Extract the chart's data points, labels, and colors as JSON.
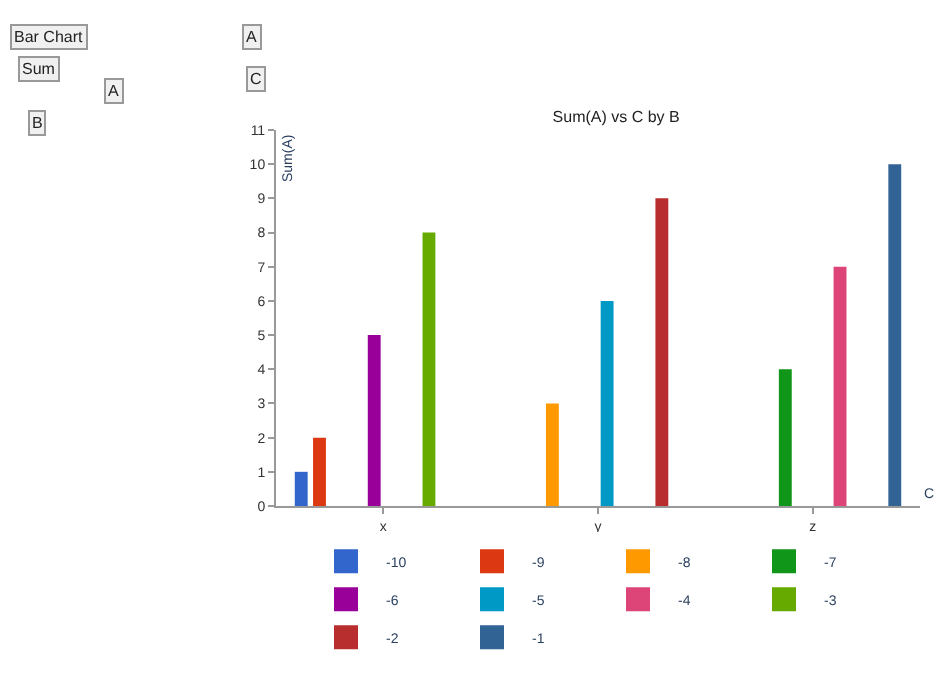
{
  "chart_data": {
    "type": "bar",
    "title": "Sum(A) vs C by B",
    "xlabel": "C",
    "ylabel": "Sum(A)",
    "categories": [
      "x",
      "y",
      "z"
    ],
    "series": [
      {
        "name": "-10",
        "color": "#3366cc",
        "values": [
          1,
          null,
          null
        ]
      },
      {
        "name": "-9",
        "color": "#dc3912",
        "values": [
          2,
          null,
          null
        ]
      },
      {
        "name": "-8",
        "color": "#ff9900",
        "values": [
          null,
          3,
          null
        ]
      },
      {
        "name": "-7",
        "color": "#109618",
        "values": [
          null,
          null,
          4
        ]
      },
      {
        "name": "-6",
        "color": "#990099",
        "values": [
          5,
          null,
          null
        ]
      },
      {
        "name": "-5",
        "color": "#0099c6",
        "values": [
          null,
          6,
          null
        ]
      },
      {
        "name": "-4",
        "color": "#dd4477",
        "values": [
          null,
          null,
          7
        ]
      },
      {
        "name": "-3",
        "color": "#66aa00",
        "values": [
          8,
          null,
          null
        ]
      },
      {
        "name": "-2",
        "color": "#b82e2e",
        "values": [
          null,
          9,
          null
        ]
      },
      {
        "name": "-1",
        "color": "#316395",
        "values": [
          null,
          null,
          10
        ]
      }
    ],
    "ylim": [
      0,
      11
    ],
    "yticks": [
      0,
      1,
      2,
      3,
      4,
      5,
      6,
      7,
      8,
      9,
      10,
      11
    ],
    "legend": "bottom",
    "annotations": [
      "Bar Chart",
      "Sum",
      "A",
      "B",
      "A",
      "C"
    ]
  }
}
